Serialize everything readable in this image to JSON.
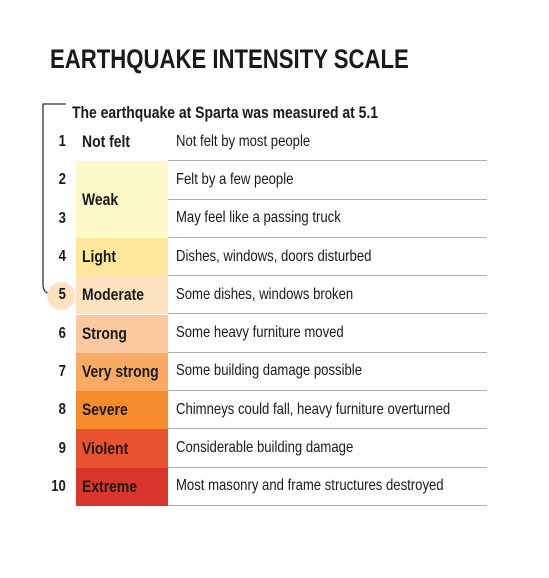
{
  "title": "EARTHQUAKE INTENSITY SCALE",
  "subtitle": "The earthquake at Sparta was measured at 5.1",
  "categories": [
    {
      "name": "Not felt",
      "color": "#ffffff",
      "levels": [
        {
          "number": "1",
          "description": "Not felt by most people"
        }
      ]
    },
    {
      "name": "Weak",
      "color": "#fdf9c9",
      "levels": [
        {
          "number": "2",
          "description": "Felt by a few people"
        },
        {
          "number": "3",
          "description": "May feel like a passing truck"
        }
      ]
    },
    {
      "name": "Light",
      "color": "#fce79a",
      "levels": [
        {
          "number": "4",
          "description": "Dishes, windows, doors disturbed"
        }
      ]
    },
    {
      "name": "Moderate",
      "color": "#fde2bf",
      "levels": [
        {
          "number": "5",
          "description": "Some dishes, windows broken"
        }
      ]
    },
    {
      "name": "Strong",
      "color": "#fbc9a0",
      "levels": [
        {
          "number": "6",
          "description": "Some heavy furniture moved"
        }
      ]
    },
    {
      "name": "Very strong",
      "color": "#f9ab66",
      "levels": [
        {
          "number": "7",
          "description": "Some building damage possible"
        }
      ]
    },
    {
      "name": "Severe",
      "color": "#f68b2b",
      "levels": [
        {
          "number": "8",
          "description": "Chimneys could fall, heavy furniture overturned"
        }
      ]
    },
    {
      "name": "Violent",
      "color": "#e8522f",
      "levels": [
        {
          "number": "9",
          "description": "Considerable building damage"
        }
      ]
    },
    {
      "name": "Extreme",
      "color": "#d8362b",
      "levels": [
        {
          "number": "10",
          "description": "Most masonry and frame structures destroyed"
        }
      ]
    }
  ]
}
